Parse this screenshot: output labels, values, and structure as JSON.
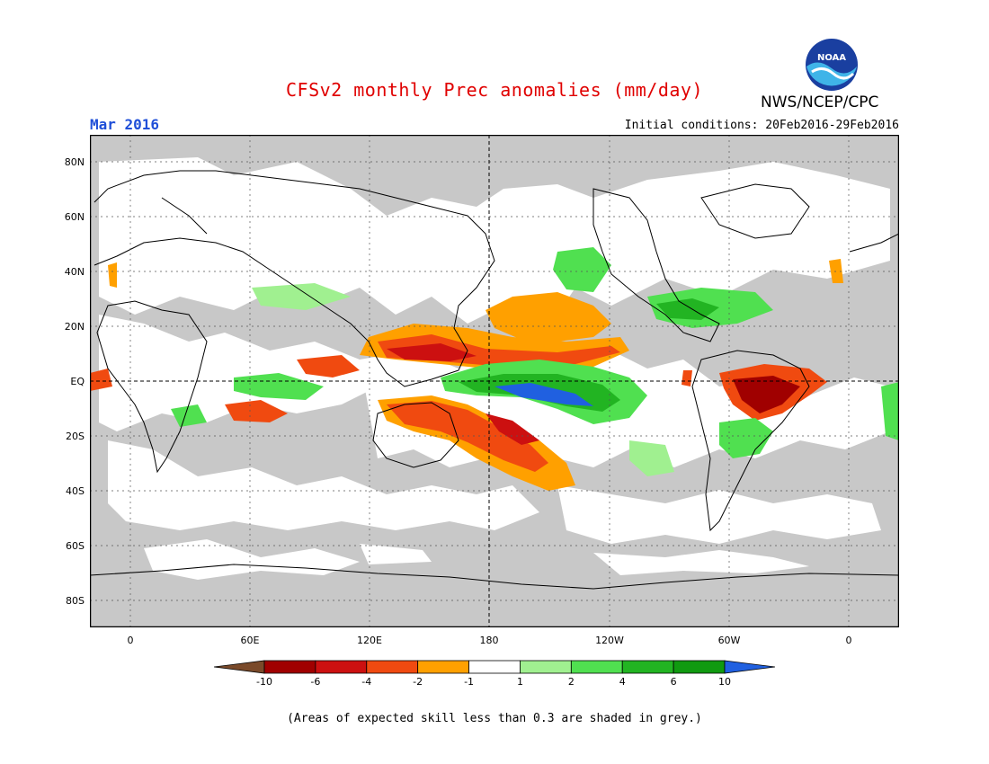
{
  "title": "CFSv2 monthly Prec anomalies (mm/day)",
  "organization": "NWS/NCEP/CPC",
  "logo_text": "NOAA",
  "forecast_month": "Mar 2016",
  "initial_conditions": "Initial conditions: 20Feb2016-29Feb2016",
  "lat_labels": [
    "80N",
    "60N",
    "40N",
    "20N",
    "EQ",
    "20S",
    "40S",
    "60S",
    "80S"
  ],
  "lon_labels": [
    "0",
    "60E",
    "120E",
    "180",
    "120W",
    "60W",
    "0"
  ],
  "colorbar": {
    "labels": [
      "-10",
      "-6",
      "-4",
      "-2",
      "-1",
      "1",
      "2",
      "4",
      "6",
      "10"
    ],
    "colors": [
      "#7a4a2a",
      "#a00000",
      "#cc1010",
      "#f04a10",
      "#ffa000",
      "#ffffff",
      "#a0f090",
      "#50e050",
      "#22b422",
      "#109a10",
      "#2060e0"
    ]
  },
  "note": "(Areas of expected skill less than 0.3 are shaded in grey.)",
  "colors": {
    "no_skill": "#c8c8c8",
    "title": "#e00000",
    "month": "#1f4fd8"
  }
}
